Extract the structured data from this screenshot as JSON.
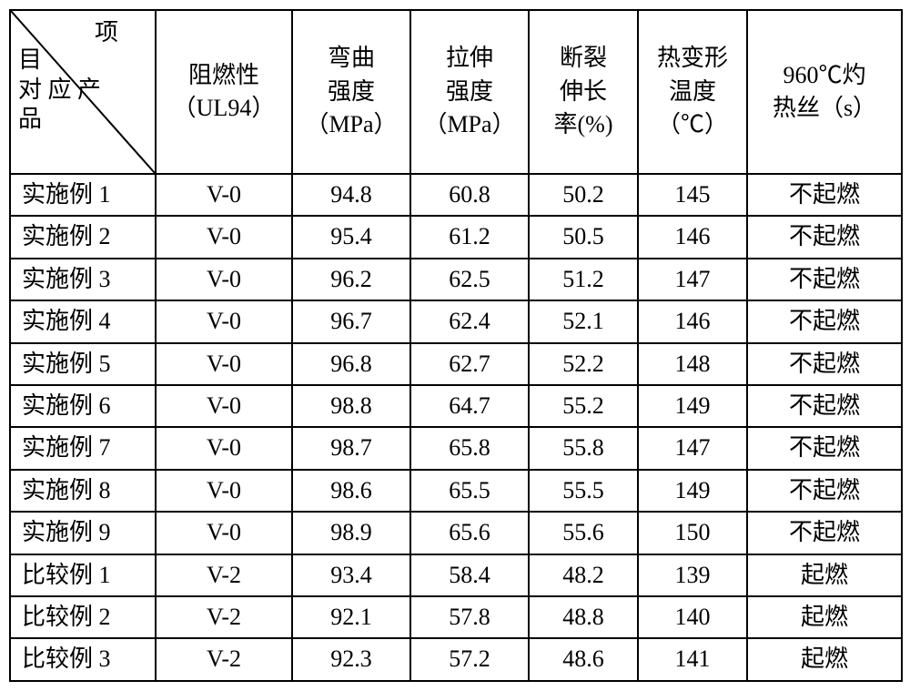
{
  "table": {
    "type": "table",
    "background_color": "#ffffff",
    "border_color": "#000000",
    "text_color": "#000000",
    "font_family": "SimSun",
    "header_fontsize": 26,
    "body_fontsize": 26,
    "diagonal_header": {
      "top_label": "项",
      "bottom_label_line1": "目",
      "bottom_label_line2": "对 应 产",
      "bottom_label_line3": "品"
    },
    "columns": [
      "阻燃性（UL94）",
      "弯曲强度（MPa）",
      "拉伸强度（MPa）",
      "断裂伸长率(%)",
      "热变形温度（℃）",
      "960℃灼热丝（s）"
    ],
    "column_headers_multiline": [
      [
        "阻燃性",
        "（UL94）"
      ],
      [
        "弯曲",
        "强度",
        "（MPa）"
      ],
      [
        "拉伸",
        "强度",
        "（MPa）"
      ],
      [
        "断裂",
        "伸长",
        "率(%)"
      ],
      [
        "热变形",
        "温度",
        "（℃）"
      ],
      [
        "960℃灼",
        "热丝（s）"
      ]
    ],
    "rows": [
      {
        "label": "实施例 1",
        "cells": [
          "V-0",
          "94.8",
          "60.8",
          "50.2",
          "145",
          "不起燃"
        ]
      },
      {
        "label": "实施例 2",
        "cells": [
          "V-0",
          "95.4",
          "61.2",
          "50.5",
          "146",
          "不起燃"
        ]
      },
      {
        "label": "实施例 3",
        "cells": [
          "V-0",
          "96.2",
          "62.5",
          "51.2",
          "147",
          "不起燃"
        ]
      },
      {
        "label": "实施例 4",
        "cells": [
          "V-0",
          "96.7",
          "62.4",
          "52.1",
          "146",
          "不起燃"
        ]
      },
      {
        "label": "实施例 5",
        "cells": [
          "V-0",
          "96.8",
          "62.7",
          "52.2",
          "148",
          "不起燃"
        ]
      },
      {
        "label": "实施例 6",
        "cells": [
          "V-0",
          "98.8",
          "64.7",
          "55.2",
          "149",
          "不起燃"
        ]
      },
      {
        "label": "实施例 7",
        "cells": [
          "V-0",
          "98.7",
          "65.8",
          "55.8",
          "147",
          "不起燃"
        ]
      },
      {
        "label": "实施例 8",
        "cells": [
          "V-0",
          "98.6",
          "65.5",
          "55.5",
          "149",
          "不起燃"
        ]
      },
      {
        "label": "实施例 9",
        "cells": [
          "V-0",
          "98.9",
          "65.6",
          "55.6",
          "150",
          "不起燃"
        ]
      },
      {
        "label": "比较例 1",
        "cells": [
          "V-2",
          "93.4",
          "58.4",
          "48.2",
          "139",
          "起燃"
        ]
      },
      {
        "label": "比较例 2",
        "cells": [
          "V-2",
          "92.1",
          "57.8",
          "48.8",
          "140",
          "起燃"
        ]
      },
      {
        "label": "比较例 3",
        "cells": [
          "V-2",
          "92.3",
          "57.2",
          "48.6",
          "141",
          "起燃"
        ]
      }
    ]
  }
}
